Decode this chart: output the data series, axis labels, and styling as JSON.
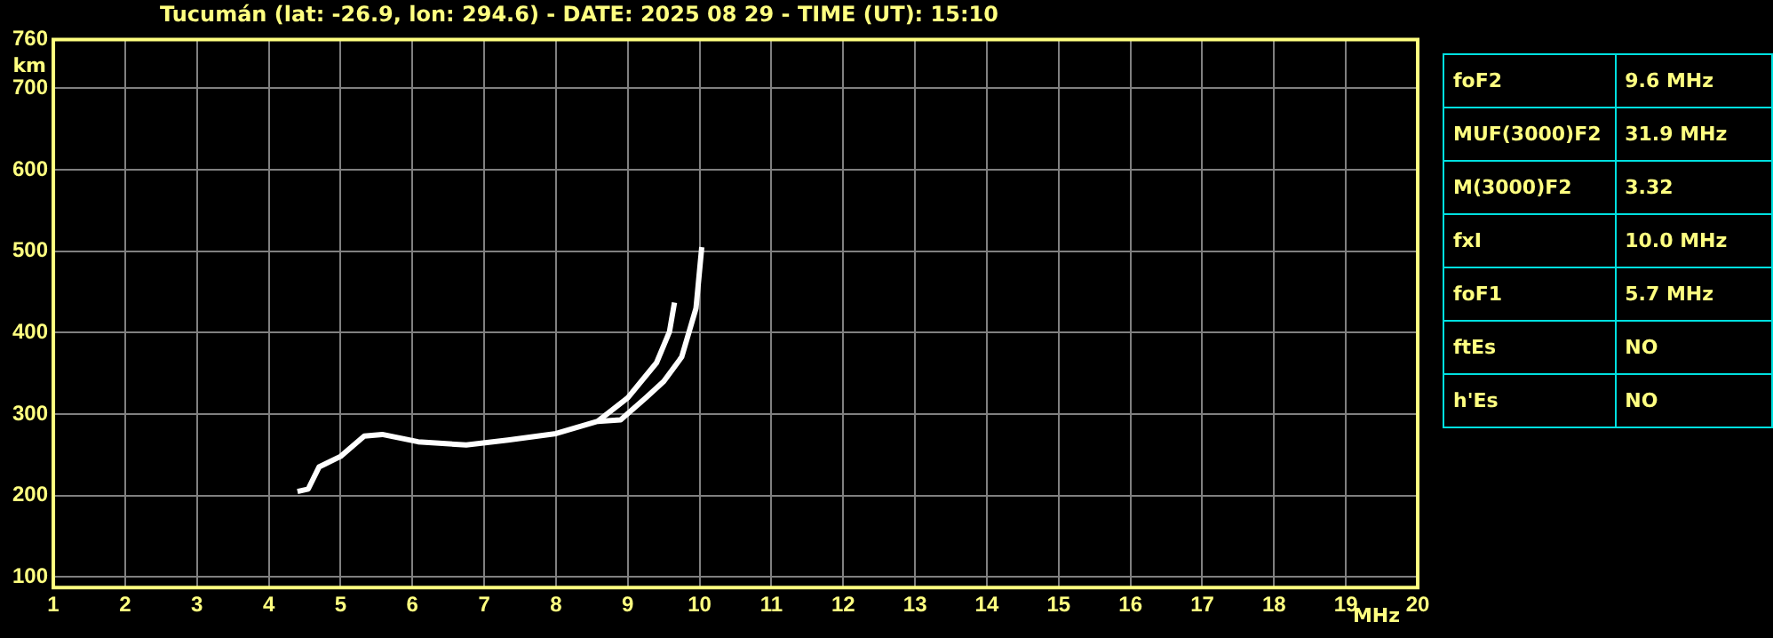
{
  "chart_data": {
    "type": "line",
    "title": "Tucumán (lat: -26.9, lon: 294.6) - DATE: 2025 08 29 - TIME (UT): 15:10",
    "xlabel": "MHz",
    "ylabel": "km",
    "series": [
      {
        "color": "#ffffff",
        "x": [
          4.4,
          4.55,
          4.7,
          5.0,
          5.33,
          5.58,
          6.08,
          6.75,
          7.33,
          8.0,
          8.58,
          9.0,
          9.4,
          9.58,
          9.65
        ],
        "values": [
          205,
          208,
          235,
          248,
          273,
          275,
          266,
          262,
          268,
          276,
          291,
          320,
          363,
          401,
          437
        ]
      },
      {
        "color": "#ffffff",
        "x": [
          8.58,
          8.9,
          9.25,
          9.5,
          9.75,
          9.95,
          10.03
        ],
        "values": [
          291,
          293,
          320,
          340,
          370,
          430,
          505
        ]
      }
    ],
    "xlim": [
      1,
      20
    ],
    "xticks": [
      1,
      2,
      3,
      4,
      5,
      6,
      7,
      8,
      9,
      10,
      11,
      12,
      13,
      14,
      15,
      16,
      17,
      18,
      19,
      20
    ],
    "ylim": [
      87,
      760
    ],
    "yticks": [
      100,
      200,
      300,
      400,
      500,
      600,
      700,
      760
    ],
    "grid": true,
    "legend": false,
    "marker": "none",
    "line_style": "solid",
    "annotations": [
      "foF2",
      "9.6 MHz",
      "MUF(3000)F2",
      "31.9 MHz",
      "M(3000)F2",
      "3.32",
      "fxI",
      "10.0 MHz",
      "foF1",
      "5.7 MHz",
      "ftEs",
      "NO",
      "h'Es",
      "NO"
    ]
  }
}
